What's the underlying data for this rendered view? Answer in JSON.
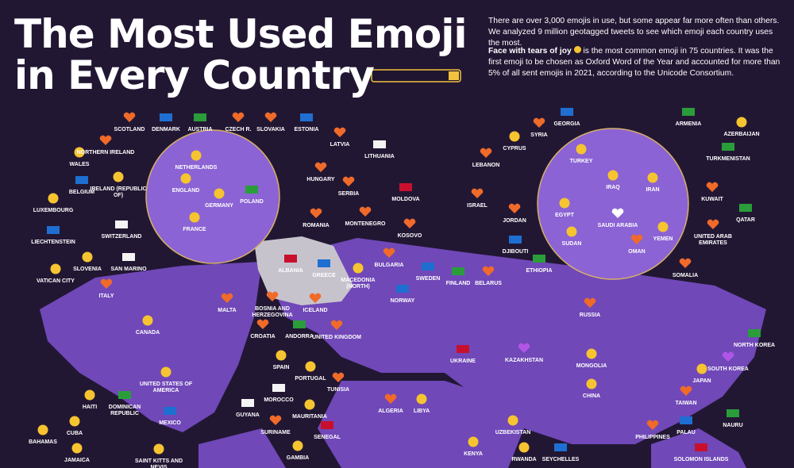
{
  "header": {
    "title_line1": "The Most Used Emoji",
    "title_line2": "in Every Country"
  },
  "intro": {
    "p1": "There are over 3,000 emojis in use, but some appear far more often than others. We analyzed 9 million geotagged tweets to see which emoji each country uses the most.",
    "p2_bold": "Face with tears of joy",
    "p2_rest": "is the most common emoji in 75 countries. It was the first emoji to be chosen as Oxford Word of the Year and accounted for more than 5% of all sent emojis in 2021, according to the Unicode Consortium."
  },
  "countries": [
    "SCOTLAND",
    "DENMARK",
    "AUSTRIA",
    "CZECH R.",
    "SLOVAKIA",
    "ESTONIA",
    "LATVIA",
    "LITHUANIA",
    "NORTHERN IRELAND",
    "WALES",
    "NETHERLANDS",
    "IRELAND (REPUBLIC OF)",
    "ENGLAND",
    "BELGIUM",
    "HUNGARY",
    "SERBIA",
    "MOLDOVA",
    "GERMANY",
    "POLAND",
    "LUXEMBOURG",
    "ROMANIA",
    "MONTENEGRO",
    "FRANCE",
    "SWITZERLAND",
    "KOSOVO",
    "LIECHTENSTEIN",
    "SLOVENIA",
    "SAN MARINO",
    "ALBANIA",
    "GREECE",
    "MACEDONIA (NORTH)",
    "BULGARIA",
    "VATICAN CITY",
    "SWEDEN",
    "FINLAND",
    "BELARUS",
    "ITALY",
    "NORWAY",
    "MALTA",
    "BOSNIA AND HERZEGOVINA",
    "ICELAND",
    "CANADA",
    "ANDORRA",
    "CROATIA",
    "UNITED KINGDOM",
    "RUSSIA",
    "NORTH KOREA",
    "KAZAKHSTAN",
    "UKRAINE",
    "MONGOLIA",
    "SPAIN",
    "SOUTH KOREA",
    "PORTUGAL",
    "UNITED STATES OF AMERICA",
    "JAPAN",
    "TUNISIA",
    "CHINA",
    "HAITI",
    "DOMINICAN REPUBLIC",
    "MOROCCO",
    "TAIWAN",
    "ALGERIA",
    "LIBYA",
    "GUYANA",
    "MAURITANIA",
    "MEXICO",
    "SURINAME",
    "UZBEKISTAN",
    "PHILIPPINES",
    "PALAU",
    "NAURU",
    "CUBA",
    "SENEGAL",
    "BAHAMAS",
    "GAMBIA",
    "KENYA",
    "RWANDA",
    "SEYCHELLES",
    "SAINT KITTS AND NEVIS",
    "JAMAICA",
    "SOLOMON ISLANDS",
    "GEORGIA",
    "ARMENIA",
    "SYRIA",
    "AZERBAIJAN",
    "CYPRUS",
    "TURKMENISTAN",
    "TURKEY",
    "LEBANON",
    "IRAQ",
    "IRAN",
    "KUWAIT",
    "ISRAEL",
    "EGYPT",
    "QATAR",
    "JORDAN",
    "SAUDI ARABIA",
    "YEMEN",
    "UNITED ARAB EMIRATES",
    "SUDAN",
    "OMAN",
    "DJIBOUTI",
    "ETHIOPIA",
    "SOMALIA"
  ]
}
